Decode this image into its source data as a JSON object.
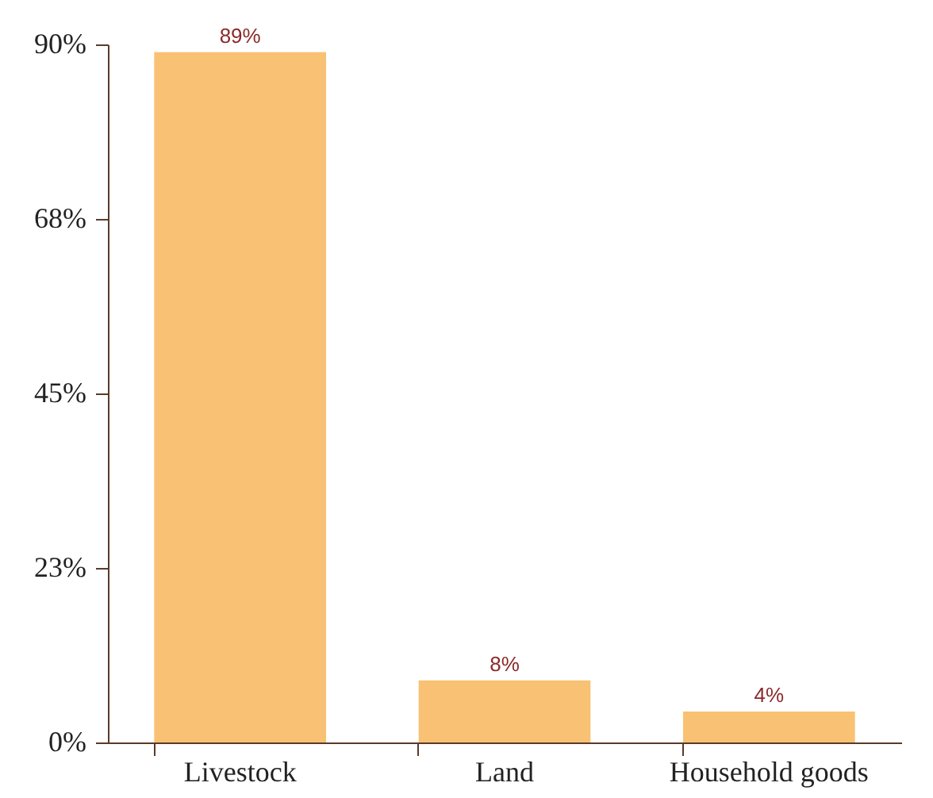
{
  "chart_data": {
    "type": "bar",
    "categories": [
      "Livestock",
      "Land",
      "Household goods"
    ],
    "values": [
      89,
      8,
      4
    ],
    "value_labels": [
      "89%",
      "8%",
      "4%"
    ],
    "color": "#f8c173",
    "ylim": [
      0,
      90
    ],
    "yticks": [
      {
        "value": 0,
        "label": "0%"
      },
      {
        "value": 22.5,
        "label": "23%"
      },
      {
        "value": 45,
        "label": "45%"
      },
      {
        "value": 67.5,
        "label": "68%"
      },
      {
        "value": 90,
        "label": "90%"
      }
    ],
    "grid": false
  }
}
